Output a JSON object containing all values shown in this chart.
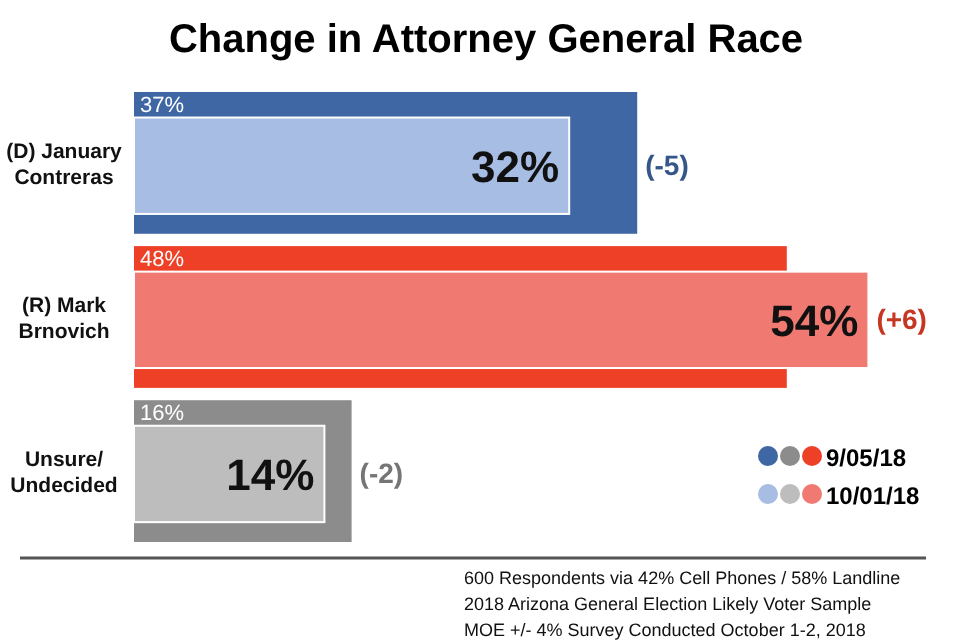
{
  "chart_data": {
    "type": "bar",
    "orientation": "horizontal",
    "title": "Change in Attorney General Race",
    "categories": [
      "(D) January Contreras",
      "(R) Mark Brnovich",
      "Unsure/ Undecided"
    ],
    "series": [
      {
        "name": "9/05/18",
        "colors": [
          "#3f67a3",
          "#ee4027",
          "#8c8c8c"
        ],
        "values": [
          37,
          48,
          16
        ],
        "value_labels": [
          "37%",
          "48%",
          "16%"
        ]
      },
      {
        "name": "10/01/18",
        "colors": [
          "#a7bde4",
          "#f07a72",
          "#bdbdbd"
        ],
        "values": [
          32,
          54,
          14
        ],
        "value_labels": [
          "32%",
          "54%",
          "14%"
        ]
      }
    ],
    "annotations": [
      {
        "text": "(-5)",
        "x": 37,
        "y": "(D) January Contreras"
      },
      {
        "text": "(+6)",
        "x": 54,
        "y": "(R) Mark Brnovich"
      },
      {
        "text": "(-2)",
        "x": 16,
        "y": "Unsure/ Undecided"
      },
      "600 Respondents via 42% Cell Phones / 58% Landline",
      "2018 Arizona General Election Likely Voter Sample",
      "MOE +/- 4% Survey Conducted October 1-2, 2018"
    ],
    "legend": "bottom right"
  }
}
